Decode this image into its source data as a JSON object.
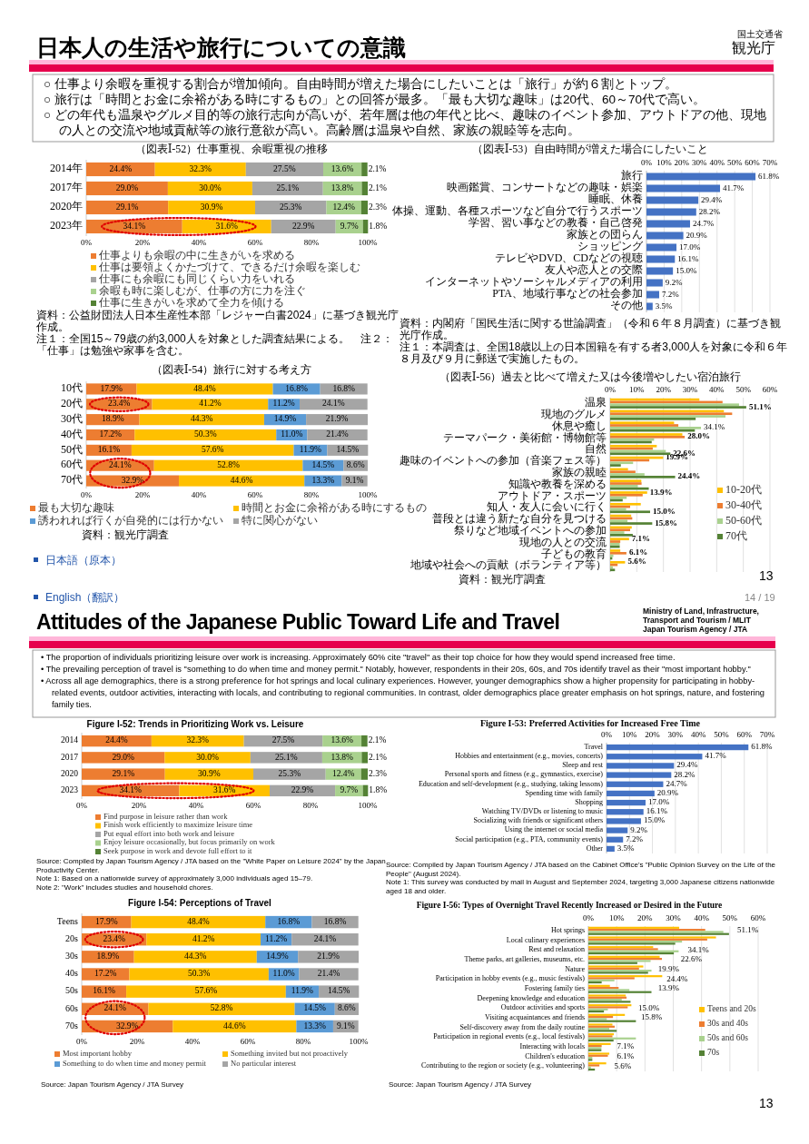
{
  "chart_data": [
    {
      "type": "other",
      "title": "日本人の生活や旅行についての意識",
      "annotations": [
        "国土交通省",
        "観光庁",
        "○ 仕事より余暇を重視する割合が増加傾向。自由時間が増えた場合にしたいことは「旅行」が約６割とトップ。",
        "○ 旅行は「時間とお金に余裕がある時にするもの」との回答が最多。「最も大切な趣味」は20代、60～70代で高い。",
        "○ どの年代も温泉やグルメ目的等の旅行志向が高いが、若年層は他の年代と比べ、趣味のイベント参加、アウトドアの他、現地の人との交流や地域貢献等の旅行意欲が高い。高齢層は温泉や自然、家族の親睦等を志向。",
        "13",
        "日本語（原本）"
      ]
    },
    {
      "type": "bar",
      "orientation": "horizontal",
      "stacked": true,
      "title": "（図表Ⅰ-52）仕事重視、余暇重視の推移",
      "categories": [
        "2014年",
        "2017年",
        "2020年",
        "2023年"
      ],
      "legend": "bottom",
      "xlim": [
        0,
        100
      ],
      "xticks": [
        {
          "value": 0,
          "label": "0%"
        },
        {
          "value": 20,
          "label": "20%"
        },
        {
          "value": 40,
          "label": "40%"
        },
        {
          "value": 60,
          "label": "60%"
        },
        {
          "value": 80,
          "label": "80%"
        },
        {
          "value": 100,
          "label": "100%"
        }
      ],
      "series": [
        {
          "name": "仕事よりも余暇の中に生きがいを求める",
          "color": "#ed7d31",
          "values": [
            24.4,
            29.0,
            29.1,
            34.1
          ],
          "value_labels": [
            "24.4%",
            "29.0%",
            "29.1%",
            "34.1%"
          ]
        },
        {
          "name": "仕事は要領よくかたづけて、できるだけ余暇を楽しむ",
          "color": "#ffc000",
          "values": [
            32.3,
            30.0,
            30.9,
            31.6
          ],
          "value_labels": [
            "32.3%",
            "30.0%",
            "30.9%",
            "31.6%"
          ]
        },
        {
          "name": "仕事にも余暇にも同じくらい力をいれる",
          "color": "#a5a5a5",
          "values": [
            27.5,
            25.1,
            25.3,
            22.9
          ],
          "value_labels": [
            "27.5%",
            "25.1%",
            "25.3%",
            "22.9%"
          ]
        },
        {
          "name": "余暇も時に楽しむが、仕事の方に力を注ぐ",
          "color": "#a9d18e",
          "values": [
            13.6,
            13.8,
            12.4,
            9.7
          ],
          "value_labels": [
            "13.6%",
            "13.8%",
            "12.4%",
            "9.7%"
          ]
        },
        {
          "name": "仕事に生きがいを求めて全力を傾ける",
          "color": "#548235",
          "values": [
            2.1,
            2.1,
            2.3,
            1.8
          ],
          "value_labels": [
            "2.1%",
            "2.1%",
            "2.3%",
            "1.8%"
          ]
        }
      ],
      "annotations": [
        "資料：公益財団法人日本生産性本部「レジャー白書2024」に基づき観光庁作成。",
        "注１：全国15～79歳の約3,000人を対象とした調査結果による。　注２：「仕事」は勉強や家事を含む。"
      ]
    },
    {
      "type": "bar",
      "orientation": "horizontal",
      "title": "（図表Ⅰ-53）自由時間が増えた場合にしたいこと",
      "categories": [
        "旅行",
        "映画鑑賞、コンサートなどの趣味・娯楽",
        "睡眠、休養",
        "体操、運動、各種スポーツなど自分で行うスポーツ",
        "学習、習い事などの教養・自己啓発",
        "家族との団らん",
        "ショッピング",
        "テレビやDVD、CDなどの視聴",
        "友人や恋人との交際",
        "インターネットやソーシャルメディアの利用",
        "PTA、地域行事などの社会参加",
        "その他"
      ],
      "color": "#4472c4",
      "grid": "x",
      "values": [
        61.8,
        41.7,
        29.4,
        28.2,
        24.7,
        20.9,
        17.0,
        16.1,
        15.0,
        9.2,
        7.2,
        3.5
      ],
      "value_labels": [
        "61.8%",
        "41.7%",
        "29.4%",
        "28.2%",
        "24.7%",
        "20.9%",
        "17.0%",
        "16.1%",
        "15.0%",
        "9.2%",
        "7.2%",
        "3.5%"
      ],
      "xlim": [
        0,
        70
      ],
      "xticks": [
        {
          "value": 0,
          "label": "0%"
        },
        {
          "value": 10,
          "label": "10%"
        },
        {
          "value": 20,
          "label": "20%"
        },
        {
          "value": 30,
          "label": "30%"
        },
        {
          "value": 40,
          "label": "40%"
        },
        {
          "value": 50,
          "label": "50%"
        },
        {
          "value": 60,
          "label": "60%"
        },
        {
          "value": 70,
          "label": "70%"
        }
      ],
      "annotations": [
        "資料：内閣府「国民生活に関する世論調査」（令和６年８月調査）に基づき観光庁作成。",
        "注１：本調査は、全国18歳以上の日本国籍を有する者3,000人を対象に令和６年８月及び９月に郵送で実施したもの。"
      ]
    },
    {
      "type": "bar",
      "orientation": "horizontal",
      "stacked": true,
      "title": "（図表Ⅰ-54）旅行に対する考え方",
      "categories": [
        "10代",
        "20代",
        "30代",
        "40代",
        "50代",
        "60代",
        "70代"
      ],
      "legend": "bottom",
      "xlim": [
        0,
        100
      ],
      "xticks": [
        {
          "value": 0,
          "label": "0%"
        },
        {
          "value": 20,
          "label": "20%"
        },
        {
          "value": 40,
          "label": "40%"
        },
        {
          "value": 60,
          "label": "60%"
        },
        {
          "value": 80,
          "label": "80%"
        },
        {
          "value": 100,
          "label": "100%"
        }
      ],
      "series": [
        {
          "name": "最も大切な趣味",
          "color": "#ed7d31",
          "values": [
            17.9,
            23.4,
            18.9,
            17.2,
            16.1,
            24.1,
            32.9
          ],
          "value_labels": [
            "17.9%",
            "23.4%",
            "18.9%",
            "17.2%",
            "16.1%",
            "24.1%",
            "32.9%"
          ]
        },
        {
          "name": "時間とお金に余裕がある時にするもの",
          "color": "#ffc000",
          "values": [
            48.4,
            41.2,
            44.3,
            50.3,
            57.6,
            52.8,
            44.6
          ],
          "value_labels": [
            "48.4%",
            "41.2%",
            "44.3%",
            "50.3%",
            "57.6%",
            "52.8%",
            "44.6%"
          ]
        },
        {
          "name": "誘われれば行くが自発的には行かない",
          "color": "#5b9bd5",
          "values": [
            16.8,
            11.2,
            14.9,
            11.0,
            11.9,
            14.5,
            13.3
          ],
          "value_labels": [
            "16.8%",
            "11.2%",
            "14.9%",
            "11.0%",
            "11.9%",
            "14.5%",
            "13.3%"
          ]
        },
        {
          "name": "特に関心がない",
          "color": "#a5a5a5",
          "values": [
            16.8,
            24.1,
            21.9,
            21.4,
            14.5,
            8.6,
            9.1
          ],
          "value_labels": [
            "16.8%",
            "24.1%",
            "21.9%",
            "21.4%",
            "14.5%",
            "8.6%",
            "9.1%"
          ]
        }
      ],
      "annotations": [
        "資料：観光庁調査"
      ]
    },
    {
      "type": "bar",
      "orientation": "horizontal",
      "title": "（図表Ⅰ-56）過去と比べて増えた又は今後増やしたい宿泊旅行",
      "categories": [
        "温泉",
        "現地のグルメ",
        "休息や癒し",
        "テーマパーク・美術館・博物館等",
        "自然",
        "趣味のイベントへの参加（音楽フェス等）",
        "家族の親睦",
        "知識や教養を深める",
        "アウトドア・スポーツ",
        "知人・友人に会いに行く",
        "普段とは違う新たな自分を見つける",
        "祭りなど地域イベントへの参加",
        "現地の人との交流",
        "子どもの教育",
        "地域や社会への貢献（ボランティア等）"
      ],
      "legend": "right",
      "grid": "x",
      "xlim": [
        0,
        60
      ],
      "xticks": [
        {
          "value": 0,
          "label": "0%"
        },
        {
          "value": 10,
          "label": "10%"
        },
        {
          "value": 20,
          "label": "20%"
        },
        {
          "value": 30,
          "label": "30%"
        },
        {
          "value": 40,
          "label": "40%"
        },
        {
          "value": 50,
          "label": "50%"
        },
        {
          "value": 60,
          "label": "60%"
        }
      ],
      "series": [
        {
          "name": "10-20代",
          "color": "#ffc000",
          "values": [
            33.5,
            42.7,
            24.0,
            27.1,
            17.5,
            19.9,
            6.7,
            11.7,
            13.9,
            11.5,
            7.9,
            8.1,
            7.1,
            3.8,
            5.6
          ],
          "value_labels": [
            null,
            null,
            null,
            null,
            null,
            "19.9%",
            null,
            null,
            "13.9%",
            null,
            null,
            null,
            "7.1%",
            null,
            "5.6%"
          ]
        },
        {
          "name": "30-40代",
          "color": "#ed7d31",
          "values": [
            42.2,
            45.8,
            25.6,
            28.0,
            16.0,
            14.7,
            9.5,
            11.8,
            12.2,
            7.5,
            8.3,
            7.5,
            3.8,
            6.1,
            2.8
          ],
          "value_labels": [
            null,
            null,
            null,
            "28.0%",
            null,
            null,
            null,
            null,
            null,
            null,
            null,
            null,
            null,
            "6.1%",
            null
          ]
        },
        {
          "name": "50-60代",
          "color": "#a9d18e",
          "values": [
            48.4,
            43.3,
            34.1,
            16.5,
            20.9,
            8.6,
            12.9,
            10.4,
            6.2,
            6.0,
            6.5,
            5.3,
            3.6,
            1.2,
            1.0
          ],
          "value_labels": [
            null,
            null,
            "34.1%",
            null,
            null,
            null,
            null,
            null,
            null,
            null,
            null,
            null,
            null,
            null,
            null
          ]
        },
        {
          "name": "70代",
          "color": "#548235",
          "values": [
            51.1,
            32.1,
            31.8,
            15.6,
            22.6,
            4.0,
            24.4,
            14.5,
            4.7,
            15.0,
            15.8,
            8.5,
            3.6,
            0.8,
            1.8
          ],
          "value_labels": [
            "51.1%",
            null,
            null,
            null,
            "22.6%",
            null,
            "24.4%",
            null,
            null,
            "15.0%",
            "15.8%",
            null,
            null,
            null,
            null
          ]
        }
      ],
      "annotations": [
        "資料：観光庁調査"
      ]
    },
    {
      "type": "other",
      "title": "Attitudes of the Japanese Public Toward Life and Travel",
      "annotations": [
        "Ministry of Land, Infrastructure, Transport and Tourism / MLIT",
        "Japan Tourism Agency / JTA",
        "• The proportion of individuals prioritizing leisure over work is increasing. Approximately 60% cite \"travel\" as their top choice for how they would spend increased free time.",
        "• The prevailing perception of travel is \"something to do when time and money permit.\" Notably, however, respondents in their 20s, 60s, and 70s identify travel as their \"most important hobby.\"",
        "• Across all age demographics, there is a strong preference for hot springs and local culinary experiences. However, younger demographics show a higher propensity for participating in hobby-related events, outdoor activities, interacting with locals, and contributing to regional communities. In contrast, older demographics place greater emphasis on hot springs, nature, and fostering family ties.",
        "13",
        "English（翻訳）",
        "14 / 19"
      ]
    },
    {
      "type": "bar",
      "orientation": "horizontal",
      "stacked": true,
      "title": "Figure I-52: Trends in Prioritizing Work vs. Leisure",
      "categories": [
        "2014",
        "2017",
        "2020",
        "2023"
      ],
      "legend": "bottom",
      "xlim": [
        0,
        100
      ],
      "xticks": [
        {
          "value": 0,
          "label": "0%"
        },
        {
          "value": 20,
          "label": "20%"
        },
        {
          "value": 40,
          "label": "40%"
        },
        {
          "value": 60,
          "label": "60%"
        },
        {
          "value": 80,
          "label": "80%"
        },
        {
          "value": 100,
          "label": "100%"
        }
      ],
      "series": [
        {
          "name": "Find purpose in leisure rather than work",
          "color": "#ed7d31",
          "values": [
            24.4,
            29.0,
            29.1,
            34.1
          ],
          "value_labels": [
            "24.4%",
            "29.0%",
            "29.1%",
            "34.1%"
          ]
        },
        {
          "name": "Finish work efficiently to maximize leisure time",
          "color": "#ffc000",
          "values": [
            32.3,
            30.0,
            30.9,
            31.6
          ],
          "value_labels": [
            "32.3%",
            "30.0%",
            "30.9%",
            "31.6%"
          ]
        },
        {
          "name": "Put equal effort into both work and leisure",
          "color": "#a5a5a5",
          "values": [
            27.5,
            25.1,
            25.3,
            22.9
          ],
          "value_labels": [
            "27.5%",
            "25.1%",
            "25.3%",
            "22.9%"
          ]
        },
        {
          "name": "Enjoy leisure occasionally, but focus primarily on work",
          "color": "#a9d18e",
          "values": [
            13.6,
            13.8,
            12.4,
            9.7
          ],
          "value_labels": [
            "13.6%",
            "13.8%",
            "12.4%",
            "9.7%"
          ]
        },
        {
          "name": "Seek purpose in work and devote full effort to it",
          "color": "#548235",
          "values": [
            2.1,
            2.1,
            2.3,
            1.8
          ],
          "value_labels": [
            "2.1%",
            "2.1%",
            "2.3%",
            "1.8%"
          ]
        }
      ],
      "annotations": [
        "Source: Compiled by Japan Tourism Agency / JTA based on the \"White Paper on Leisure 2024\" by the Japan Productivity Center.",
        "Note 1: Based on a nationwide survey of approximately 3,000 individuals aged 15–79.",
        "Note 2: \"Work\" includes studies and household chores."
      ]
    },
    {
      "type": "bar",
      "orientation": "horizontal",
      "title": "Figure I-53: Preferred Activities for Increased Free Time",
      "categories": [
        "Travel",
        "Hobbies and entertainment (e.g., movies, concerts)",
        "Sleep and rest",
        "Personal sports and fitness (e.g., gymnastics, exercise)",
        "Education and self-development (e.g., studying, taking lessons)",
        "Spending time with family",
        "Shopping",
        "Watching TV/DVDs or listening to music",
        "Socializing with friends or significant others",
        "Using the internet or social media",
        "Social participation (e.g., PTA, community events)",
        "Other"
      ],
      "color": "#4472c4",
      "grid": "x",
      "values": [
        61.8,
        41.7,
        29.4,
        28.2,
        24.7,
        20.9,
        17.0,
        16.1,
        15.0,
        9.2,
        7.2,
        3.5
      ],
      "value_labels": [
        "61.8%",
        "41.7%",
        "29.4%",
        "28.2%",
        "24.7%",
        "20.9%",
        "17.0%",
        "16.1%",
        "15.0%",
        "9.2%",
        "7.2%",
        "3.5%"
      ],
      "xlim": [
        0,
        70
      ],
      "xticks": [
        {
          "value": 0,
          "label": "0%"
        },
        {
          "value": 10,
          "label": "10%"
        },
        {
          "value": 20,
          "label": "20%"
        },
        {
          "value": 30,
          "label": "30%"
        },
        {
          "value": 40,
          "label": "40%"
        },
        {
          "value": 50,
          "label": "50%"
        },
        {
          "value": 60,
          "label": "60%"
        },
        {
          "value": 70,
          "label": "70%"
        }
      ],
      "annotations": [
        "Source: Compiled by Japan Tourism Agency / JTA based on the Cabinet Office's \"Public Opinion Survey on the Life of the People\" (August 2024).",
        "Note 1: This survey was conducted by mail in August and September 2024, targeting 3,000 Japanese citizens nationwide aged 18 and older."
      ]
    },
    {
      "type": "bar",
      "orientation": "horizontal",
      "stacked": true,
      "title": "Figure I-54: Perceptions of Travel",
      "categories": [
        "Teens",
        "20s",
        "30s",
        "40s",
        "50s",
        "60s",
        "70s"
      ],
      "legend": "bottom",
      "xlim": [
        0,
        100
      ],
      "xticks": [
        {
          "value": 0,
          "label": "0%"
        },
        {
          "value": 20,
          "label": "20%"
        },
        {
          "value": 40,
          "label": "40%"
        },
        {
          "value": 60,
          "label": "60%"
        },
        {
          "value": 80,
          "label": "80%"
        },
        {
          "value": 100,
          "label": "100%"
        }
      ],
      "series": [
        {
          "name": "Most important hobby",
          "color": "#ed7d31",
          "values": [
            17.9,
            23.4,
            18.9,
            17.2,
            16.1,
            24.1,
            32.9
          ],
          "value_labels": [
            "17.9%",
            "23.4%",
            "18.9%",
            "17.2%",
            "16.1%",
            "24.1%",
            "32.9%"
          ]
        },
        {
          "name": "Something invited but not proactively",
          "color": "#ffc000",
          "values": [
            48.4,
            41.2,
            44.3,
            50.3,
            57.6,
            52.8,
            44.6
          ],
          "value_labels": [
            "48.4%",
            "41.2%",
            "44.3%",
            "50.3%",
            "57.6%",
            "52.8%",
            "44.6%"
          ]
        },
        {
          "name": "Something to do when time and money permit",
          "color": "#5b9bd5",
          "values": [
            16.8,
            11.2,
            14.9,
            11.0,
            11.9,
            14.5,
            13.3
          ],
          "value_labels": [
            "16.8%",
            "11.2%",
            "14.9%",
            "11.0%",
            "11.9%",
            "14.5%",
            "13.3%"
          ]
        },
        {
          "name": "No particular interest",
          "color": "#a5a5a5",
          "values": [
            16.8,
            24.1,
            21.9,
            21.4,
            14.5,
            8.6,
            9.1
          ],
          "value_labels": [
            "16.8%",
            "24.1%",
            "21.9%",
            "21.4%",
            "14.5%",
            "8.6%",
            "9.1%"
          ]
        }
      ],
      "annotations": [
        "Source: Japan Tourism Agency / JTA Survey"
      ]
    },
    {
      "type": "bar",
      "orientation": "horizontal",
      "title": "Figure I-56: Types of Overnight Travel Recently Increased or Desired in the Future",
      "categories": [
        "Hot springs",
        "Local culinary experiences",
        "Rest and relaxation",
        "Theme parks, art galleries, museums, etc.",
        "Nature",
        "Participation in hobby events (e.g., music festivals)",
        "Fostering family ties",
        "Deepening knowledge and education",
        "Outdoor activities and sports",
        "Visiting acquaintances and friends",
        "Self-discovery away from the daily routine",
        "Participation in regional events (e.g., local festivals)",
        "Interacting with locals",
        "Children's education",
        "Contributing to the region or society (e.g., volunteering)"
      ],
      "legend": "right",
      "grid": "x",
      "xlim": [
        0,
        60
      ],
      "xticks": [
        {
          "value": 0,
          "label": "0%"
        },
        {
          "value": 10,
          "label": "10%"
        },
        {
          "value": 20,
          "label": "20%"
        },
        {
          "value": 30,
          "label": "30%"
        },
        {
          "value": 40,
          "label": "40%"
        },
        {
          "value": 50,
          "label": "50%"
        },
        {
          "value": 60,
          "label": "60%"
        }
      ],
      "series": [
        {
          "name": "Teens and 20s",
          "color": "#ffc000",
          "values": [
            32.1,
            45.1,
            22.9,
            25.2,
            19.4,
            26.1,
            7.6,
            13.2,
            15.2,
            12.9,
            8.5,
            9.0,
            7.9,
            7.4,
            6.3
          ]
        },
        {
          "name": "30s and 40s",
          "color": "#ed7d31",
          "values": [
            41.3,
            42.0,
            24.6,
            26.0,
            17.9,
            16.3,
            10.7,
            13.5,
            13.9,
            8.7,
            9.3,
            8.5,
            4.7,
            6.9,
            3.9
          ]
        },
        {
          "name": "50s and 60s",
          "color": "#a9d18e",
          "values": [
            47.7,
            33.1,
            31.9,
            22.0,
            22.3,
            9.2,
            14.5,
            11.8,
            6.9,
            6.5,
            7.4,
            16.8,
            4.6,
            1.4,
            0.9
          ]
        },
        {
          "name": "70s",
          "color": "#548235",
          "values": [
            49.7,
            30.7,
            30.2,
            17.3,
            21.1,
            4.7,
            22.3,
            14.9,
            5.5,
            16.8,
            10.0,
            8.9,
            4.6,
            1.4,
            2.3
          ]
        }
      ],
      "annotations": [
        "51.1%",
        "34.1%",
        "22.6%",
        "19.9%",
        "24.4%",
        "13.9%",
        "15.0%",
        "15.8%",
        "7.1%",
        "6.1%",
        "5.6%",
        "Source: Japan Tourism Agency / JTA Survey"
      ]
    }
  ]
}
